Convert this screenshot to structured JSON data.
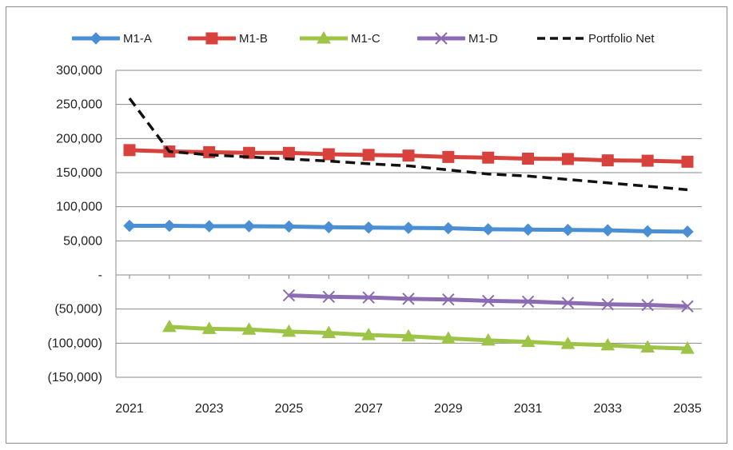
{
  "chart_data": {
    "type": "line",
    "title": "",
    "xlabel": "",
    "ylabel": "",
    "x": [
      2021,
      2022,
      2023,
      2024,
      2025,
      2026,
      2027,
      2028,
      2029,
      2030,
      2031,
      2032,
      2033,
      2034,
      2035
    ],
    "x_tick_labels": [
      "2021",
      "2023",
      "2025",
      "2027",
      "2029",
      "2031",
      "2033",
      "2035"
    ],
    "y_tick_labels": [
      "300,000",
      "250,000",
      "200,000",
      "150,000",
      "100,000",
      "50,000",
      "-",
      "(50,000)",
      "(100,000)",
      "(150,000)"
    ],
    "y_tick_values": [
      300000,
      250000,
      200000,
      150000,
      100000,
      50000,
      0,
      -50000,
      -100000,
      -150000
    ],
    "ylim": [
      -150000,
      300000
    ],
    "grid": "horizontal",
    "legend_position": "top",
    "series": [
      {
        "name": "M1-A",
        "color": "#4a8fd4",
        "marker": "diamond",
        "line_style": "solid",
        "values": [
          72000,
          72000,
          71500,
          71500,
          71000,
          70000,
          69500,
          69000,
          68500,
          67000,
          66500,
          66000,
          65500,
          64000,
          63500
        ]
      },
      {
        "name": "M1-B",
        "color": "#d8423c",
        "marker": "square",
        "line_style": "solid",
        "values": [
          183000,
          181000,
          180000,
          179000,
          179000,
          177000,
          176000,
          175000,
          173000,
          172000,
          170500,
          170000,
          168000,
          167500,
          166000
        ]
      },
      {
        "name": "M1-C",
        "color": "#9dc347",
        "marker": "triangle",
        "line_style": "solid",
        "values": [
          null,
          -76000,
          -79000,
          -80000,
          -83000,
          -85000,
          -88000,
          -90000,
          -93000,
          -96000,
          -98000,
          -101000,
          -103000,
          -106000,
          -108000
        ]
      },
      {
        "name": "M1-D",
        "color": "#8b6cb3",
        "marker": "x",
        "line_style": "solid",
        "values": [
          null,
          null,
          null,
          null,
          -30000,
          -32000,
          -33000,
          -35000,
          -36000,
          -38000,
          -39000,
          -41000,
          -43000,
          -44000,
          -46000
        ]
      },
      {
        "name": "Portfolio Net",
        "color": "#111111",
        "marker": "none",
        "line_style": "dashed",
        "values": [
          259000,
          181000,
          176000,
          173000,
          170000,
          167000,
          163000,
          160000,
          154000,
          148000,
          145000,
          140000,
          135000,
          130000,
          125000
        ]
      }
    ]
  }
}
